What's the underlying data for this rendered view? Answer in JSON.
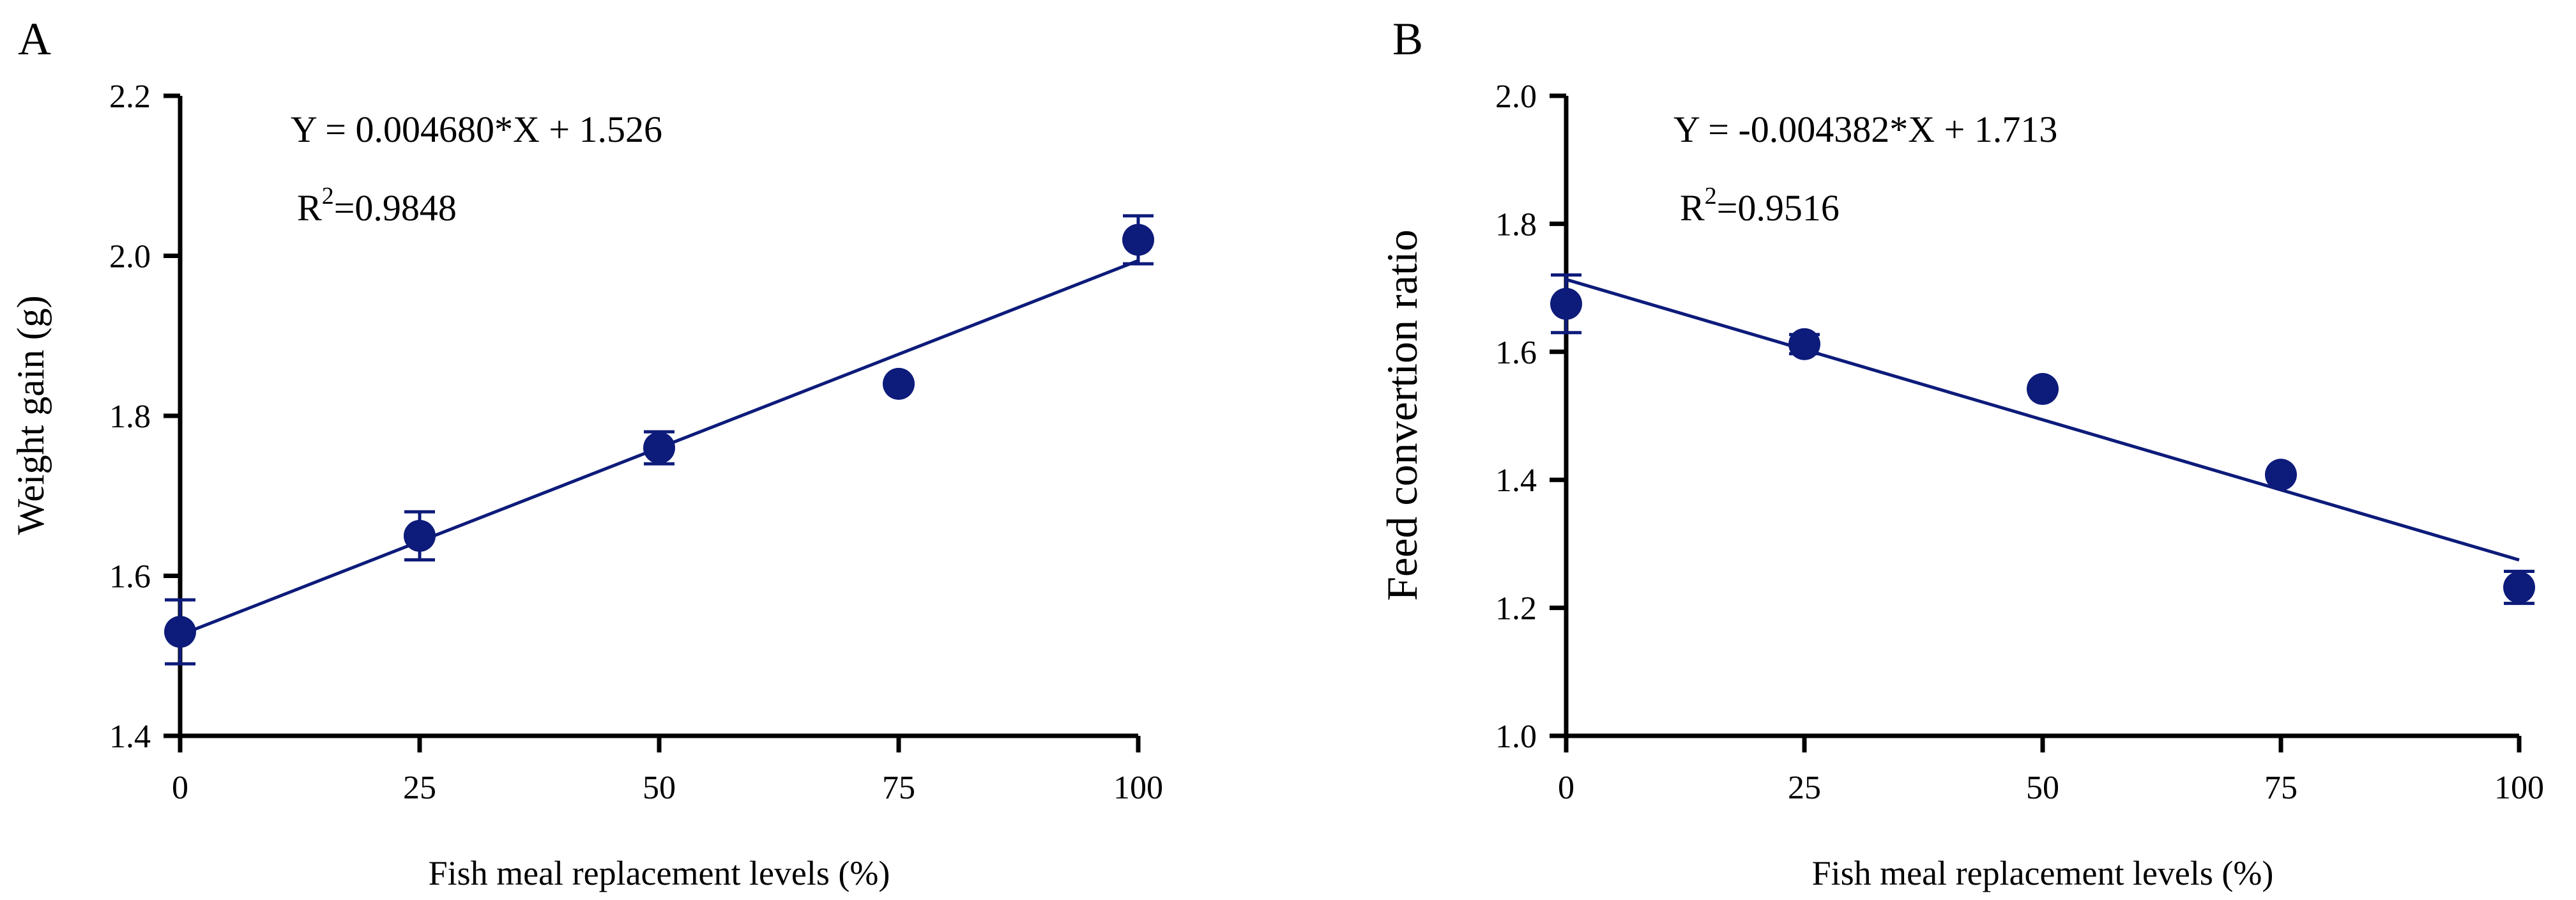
{
  "chart_data": [
    {
      "panel_label": "A",
      "type": "scatter",
      "title": "",
      "xlabel": "Fish meal replacement levels (%)",
      "ylabel": "Weight gain (g)",
      "xlim": [
        0,
        100
      ],
      "ylim": [
        1.4,
        2.2
      ],
      "x_ticks": [
        0,
        25,
        50,
        75,
        100
      ],
      "x_tick_labels": [
        "0",
        "25",
        "50",
        "75",
        "100"
      ],
      "y_ticks": [
        1.4,
        1.6,
        1.8,
        2.0,
        2.2
      ],
      "y_tick_labels": [
        "1.4",
        "1.6",
        "1.8",
        "2.0",
        "2.2"
      ],
      "grid": false,
      "series": [
        {
          "name": "Weight gain",
          "x": [
            0,
            25,
            50,
            75,
            100
          ],
          "y": [
            1.53,
            1.65,
            1.76,
            1.84,
            2.02
          ],
          "error": [
            0.04,
            0.03,
            0.02,
            0.0,
            0.03
          ]
        }
      ],
      "fit": {
        "slope": 0.00468,
        "intercept": 1.526
      },
      "equation_text": "Y = 0.004680*X + 1.526",
      "r2_prefix": "R",
      "r2_sup": "2",
      "r2_value": "=0.9848"
    },
    {
      "panel_label": "B",
      "type": "scatter",
      "title": "",
      "xlabel": "Fish meal replacement levels (%)",
      "ylabel": "Feed convertion ratio",
      "xlim": [
        0,
        100
      ],
      "ylim": [
        1.0,
        2.0
      ],
      "x_ticks": [
        0,
        25,
        50,
        75,
        100
      ],
      "x_tick_labels": [
        "0",
        "25",
        "50",
        "75",
        "100"
      ],
      "y_ticks": [
        1.0,
        1.2,
        1.4,
        1.6,
        1.8,
        2.0
      ],
      "y_tick_labels": [
        "1.0",
        "1.2",
        "1.4",
        "1.6",
        "1.8",
        "2.0"
      ],
      "grid": false,
      "series": [
        {
          "name": "Feed convertion ratio",
          "x": [
            0,
            25,
            50,
            75,
            100
          ],
          "y": [
            1.675,
            1.612,
            1.542,
            1.408,
            1.232
          ],
          "error": [
            0.045,
            0.015,
            0.0,
            0.0,
            0.025
          ]
        }
      ],
      "fit": {
        "slope": -0.004382,
        "intercept": 1.713
      },
      "equation_text": "Y = -0.004382*X + 1.713",
      "r2_prefix": "R",
      "r2_sup": "2",
      "r2_value": "=0.9516"
    }
  ],
  "style": {
    "marker_color": "#0d1b7a",
    "line_color": "#0d1b7a",
    "axis_color": "#000000"
  }
}
